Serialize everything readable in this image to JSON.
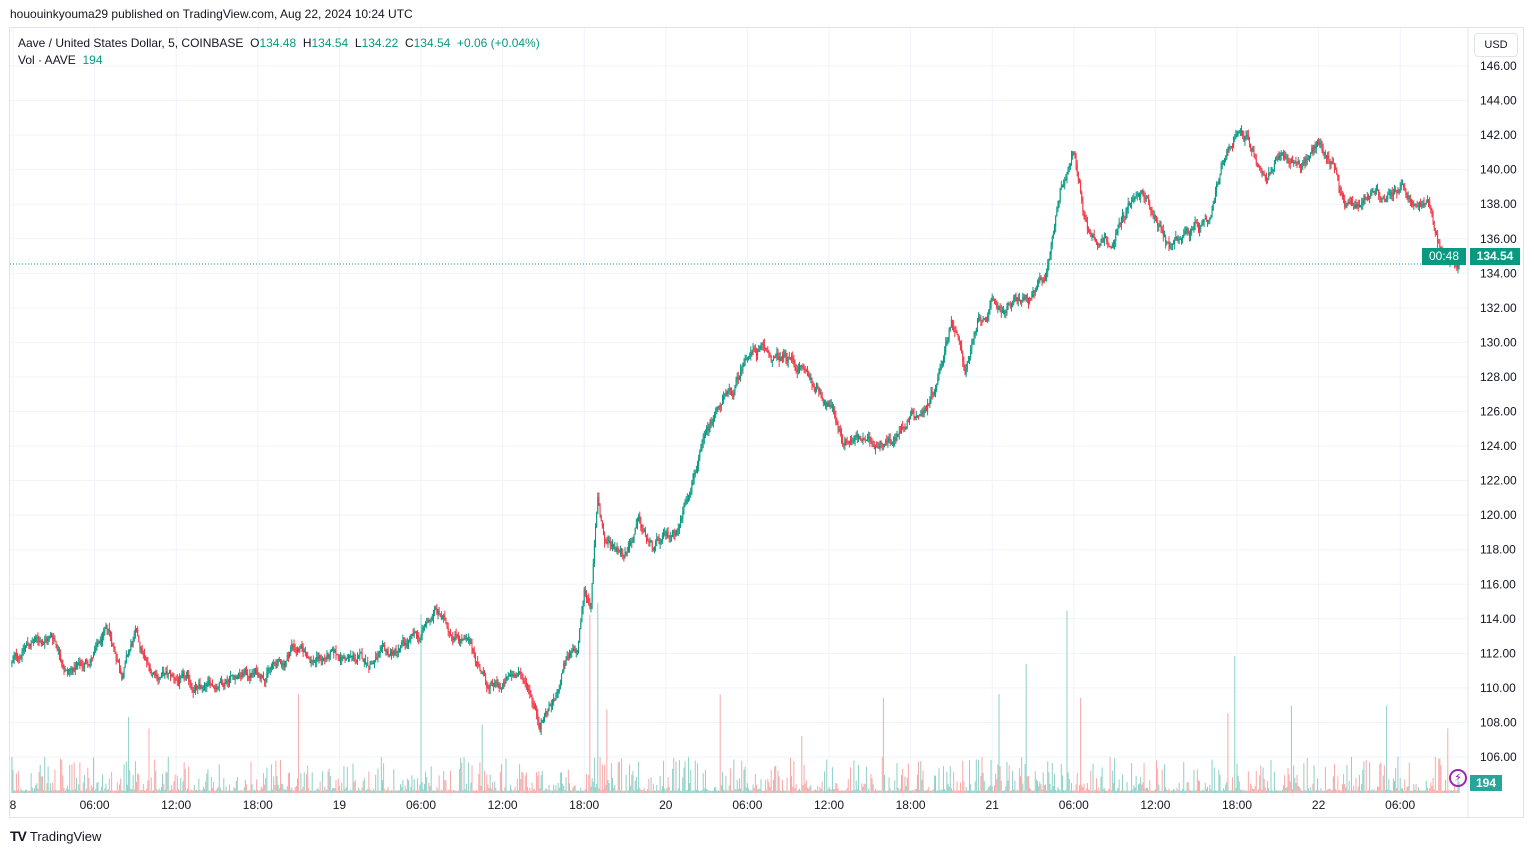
{
  "header": {
    "published": "hououinkyouma29 published on TradingView.com, Aug 22, 2024 10:24 UTC"
  },
  "legend": {
    "symbol": "Aave / United States Dollar, 5, COINBASE",
    "o_label": "O",
    "o": "134.48",
    "h_label": "H",
    "h": "134.54",
    "l_label": "L",
    "l": "134.22",
    "c_label": "C",
    "c": "134.54",
    "change": "+0.06 (+0.04%)",
    "vol_label": "Vol · AAVE",
    "vol": "194"
  },
  "currency": "USD",
  "last_price": {
    "price": "134.54",
    "countdown": "00:48"
  },
  "volume_label": "194",
  "footer": {
    "brand": "TradingView"
  },
  "colors": {
    "up": "#089981",
    "down": "#f23645",
    "vol_up": "#8fd0c6",
    "vol_down": "#f7a9a7",
    "grid": "#f0f3fa"
  },
  "chart_data": {
    "type": "candlestick",
    "interval": "5m",
    "yaxis": {
      "min": 106,
      "max": 146,
      "ticks": [
        "146.00",
        "144.00",
        "142.00",
        "140.00",
        "138.00",
        "136.00",
        "134.00",
        "132.00",
        "130.00",
        "128.00",
        "126.00",
        "124.00",
        "122.00",
        "120.00",
        "118.00",
        "116.00",
        "114.00",
        "112.00",
        "110.00",
        "108.00",
        "106.00"
      ]
    },
    "xaxis": {
      "ticks": [
        {
          "h": 0,
          "label": "8"
        },
        {
          "h": 6,
          "label": "06:00"
        },
        {
          "h": 12,
          "label": "12:00"
        },
        {
          "h": 18,
          "label": "18:00"
        },
        {
          "h": 24,
          "label": "19"
        },
        {
          "h": 30,
          "label": "06:00"
        },
        {
          "h": 36,
          "label": "12:00"
        },
        {
          "h": 42,
          "label": "18:00"
        },
        {
          "h": 48,
          "label": "20"
        },
        {
          "h": 54,
          "label": "06:00"
        },
        {
          "h": 60,
          "label": "12:00"
        },
        {
          "h": 66,
          "label": "18:00"
        },
        {
          "h": 72,
          "label": "21"
        },
        {
          "h": 78,
          "label": "06:00"
        },
        {
          "h": 84,
          "label": "12:00"
        },
        {
          "h": 90,
          "label": "18:00"
        },
        {
          "h": 96,
          "label": "22"
        },
        {
          "h": 102,
          "label": "06:00"
        }
      ]
    },
    "grid": true,
    "price_path_hours_close": [
      [
        0,
        111.5
      ],
      [
        1,
        112.5
      ],
      [
        3,
        113
      ],
      [
        4,
        111
      ],
      [
        5,
        111.2
      ],
      [
        6,
        112
      ],
      [
        7,
        113.2
      ],
      [
        8,
        111
      ],
      [
        9,
        113
      ],
      [
        10,
        111
      ],
      [
        12,
        110.5
      ],
      [
        14,
        109.8
      ],
      [
        16,
        110.8
      ],
      [
        18,
        110.8
      ],
      [
        20,
        111.5
      ],
      [
        20.5,
        112.5
      ],
      [
        22,
        111.7
      ],
      [
        24,
        111.8
      ],
      [
        26,
        111.5
      ],
      [
        28,
        112
      ],
      [
        30,
        113
      ],
      [
        31,
        114.5
      ],
      [
        32,
        113.5
      ],
      [
        33,
        113
      ],
      [
        34,
        111.8
      ],
      [
        35,
        110
      ],
      [
        36,
        110
      ],
      [
        37,
        111
      ],
      [
        38,
        110
      ],
      [
        38.7,
        108
      ],
      [
        39.5,
        109
      ],
      [
        40,
        109.5
      ],
      [
        40.5,
        111.5
      ],
      [
        41.5,
        112
      ],
      [
        42,
        115.5
      ],
      [
        42.5,
        115
      ],
      [
        43,
        121
      ],
      [
        43.5,
        118.5
      ],
      [
        45,
        118
      ],
      [
        46,
        119.5
      ],
      [
        47,
        118
      ],
      [
        48,
        118.5
      ],
      [
        49,
        119.5
      ],
      [
        50,
        122.5
      ],
      [
        51,
        124.5
      ],
      [
        52,
        126.5
      ],
      [
        53,
        127
      ],
      [
        54,
        129.5
      ],
      [
        55,
        129.5
      ],
      [
        56,
        129
      ],
      [
        57,
        129
      ],
      [
        58,
        128.5
      ],
      [
        59,
        127.5
      ],
      [
        60,
        126.5
      ],
      [
        61,
        124.5
      ],
      [
        62,
        124.5
      ],
      [
        63,
        124
      ],
      [
        64,
        124.5
      ],
      [
        65,
        124.5
      ],
      [
        66,
        126
      ],
      [
        67,
        126
      ],
      [
        68,
        128
      ],
      [
        69,
        131.5
      ],
      [
        70,
        128.5
      ],
      [
        71,
        131
      ],
      [
        72,
        132
      ],
      [
        73,
        132
      ],
      [
        74,
        132.5
      ],
      [
        75,
        132.5
      ],
      [
        76,
        134
      ],
      [
        77,
        139
      ],
      [
        78,
        141
      ],
      [
        79,
        136.5
      ],
      [
        80,
        136
      ],
      [
        81,
        136
      ],
      [
        82,
        138
      ],
      [
        83,
        138.5
      ],
      [
        84,
        137.5
      ],
      [
        85,
        135.5
      ],
      [
        86,
        136.5
      ],
      [
        87,
        136.5
      ],
      [
        88,
        136.5
      ],
      [
        89,
        140.5
      ],
      [
        90,
        142.5
      ],
      [
        91,
        141.5
      ],
      [
        92,
        139.5
      ],
      [
        93,
        140.5
      ],
      [
        94,
        140.5
      ],
      [
        95,
        140.5
      ],
      [
        96,
        141.5
      ],
      [
        97,
        140.5
      ],
      [
        98,
        138
      ],
      [
        99,
        138
      ],
      [
        100,
        139
      ],
      [
        101,
        138
      ],
      [
        102,
        139
      ],
      [
        103,
        137.8
      ],
      [
        104,
        138
      ],
      [
        105,
        135.2
      ],
      [
        105.5,
        134.7
      ],
      [
        106.4,
        134.54
      ]
    ],
    "volume_spikes_hours": [
      [
        8.5,
        2000
      ],
      [
        10,
        1700
      ],
      [
        21,
        2600
      ],
      [
        30,
        4700
      ],
      [
        34.5,
        1800
      ],
      [
        42.4,
        4700
      ],
      [
        43,
        5000
      ],
      [
        43.7,
        2200
      ],
      [
        52,
        2600
      ],
      [
        58,
        1500
      ],
      [
        64,
        2500
      ],
      [
        72.5,
        2600
      ],
      [
        74.5,
        3400
      ],
      [
        77.5,
        4800
      ],
      [
        78.5,
        2500
      ],
      [
        89.3,
        2100
      ],
      [
        89.8,
        3600
      ],
      [
        94,
        2300
      ],
      [
        101,
        2300
      ],
      [
        105.5,
        1700
      ]
    ]
  }
}
